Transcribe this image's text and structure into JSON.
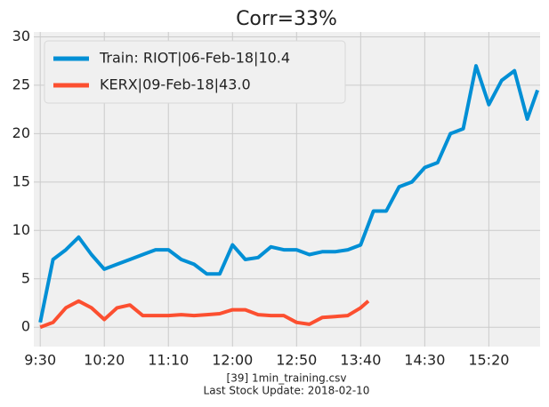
{
  "chart_data": {
    "type": "line",
    "title": "Corr=33%",
    "footer": [
      "[39] 1min_training.csv",
      "Last Stock Update: 2018-02-10"
    ],
    "xlim": [
      "9:25",
      "16:00"
    ],
    "xticks": [
      "9:30",
      "10:20",
      "11:10",
      "12:00",
      "12:50",
      "13:40",
      "14:30",
      "15:20"
    ],
    "ylim": [
      -2,
      30.5
    ],
    "yticks": [
      0,
      5,
      10,
      15,
      20,
      25,
      30
    ],
    "grid": true,
    "legend": "upper left",
    "series": [
      {
        "name": "Train: RIOT|06-Feb-18|10.4",
        "color": "#008fd5",
        "x": [
          "9:30",
          "9:40",
          "9:50",
          "10:00",
          "10:10",
          "10:20",
          "10:30",
          "10:40",
          "10:50",
          "11:00",
          "11:10",
          "11:20",
          "11:30",
          "11:40",
          "11:50",
          "12:00",
          "12:10",
          "12:20",
          "12:30",
          "12:40",
          "12:50",
          "13:00",
          "13:10",
          "13:20",
          "13:30",
          "13:40",
          "13:50",
          "14:00",
          "14:10",
          "14:20",
          "14:30",
          "14:40",
          "14:50",
          "15:00",
          "15:10",
          "15:20",
          "15:30",
          "15:40",
          "15:50",
          "15:58"
        ],
        "values": [
          0.5,
          7,
          8,
          9.3,
          7.5,
          6,
          6.5,
          7,
          7.5,
          8,
          8,
          7,
          6.5,
          5.5,
          5.5,
          8.5,
          7,
          7.2,
          8.3,
          8,
          8,
          7.5,
          7.8,
          7.8,
          8,
          8.5,
          12,
          12,
          14.5,
          15,
          16.5,
          17,
          20,
          20.5,
          27,
          23,
          25.5,
          26.5,
          21.5,
          24.5
        ]
      },
      {
        "name": "KERX|09-Feb-18|43.0",
        "color": "#fc4f30",
        "x": [
          "9:30",
          "9:40",
          "9:50",
          "10:00",
          "10:10",
          "10:20",
          "10:30",
          "10:40",
          "10:50",
          "11:00",
          "11:10",
          "11:20",
          "11:30",
          "11:40",
          "11:50",
          "12:00",
          "12:10",
          "12:20",
          "12:30",
          "12:40",
          "12:50",
          "13:00",
          "13:10",
          "13:20",
          "13:30",
          "13:40",
          "13:46"
        ],
        "values": [
          0,
          0.5,
          2,
          2.7,
          2,
          0.8,
          2,
          2.3,
          1.2,
          1.2,
          1.2,
          1.3,
          1.2,
          1.3,
          1.4,
          1.8,
          1.8,
          1.3,
          1.2,
          1.2,
          0.5,
          0.3,
          1,
          1.1,
          1.2,
          2,
          2.7
        ]
      }
    ]
  }
}
